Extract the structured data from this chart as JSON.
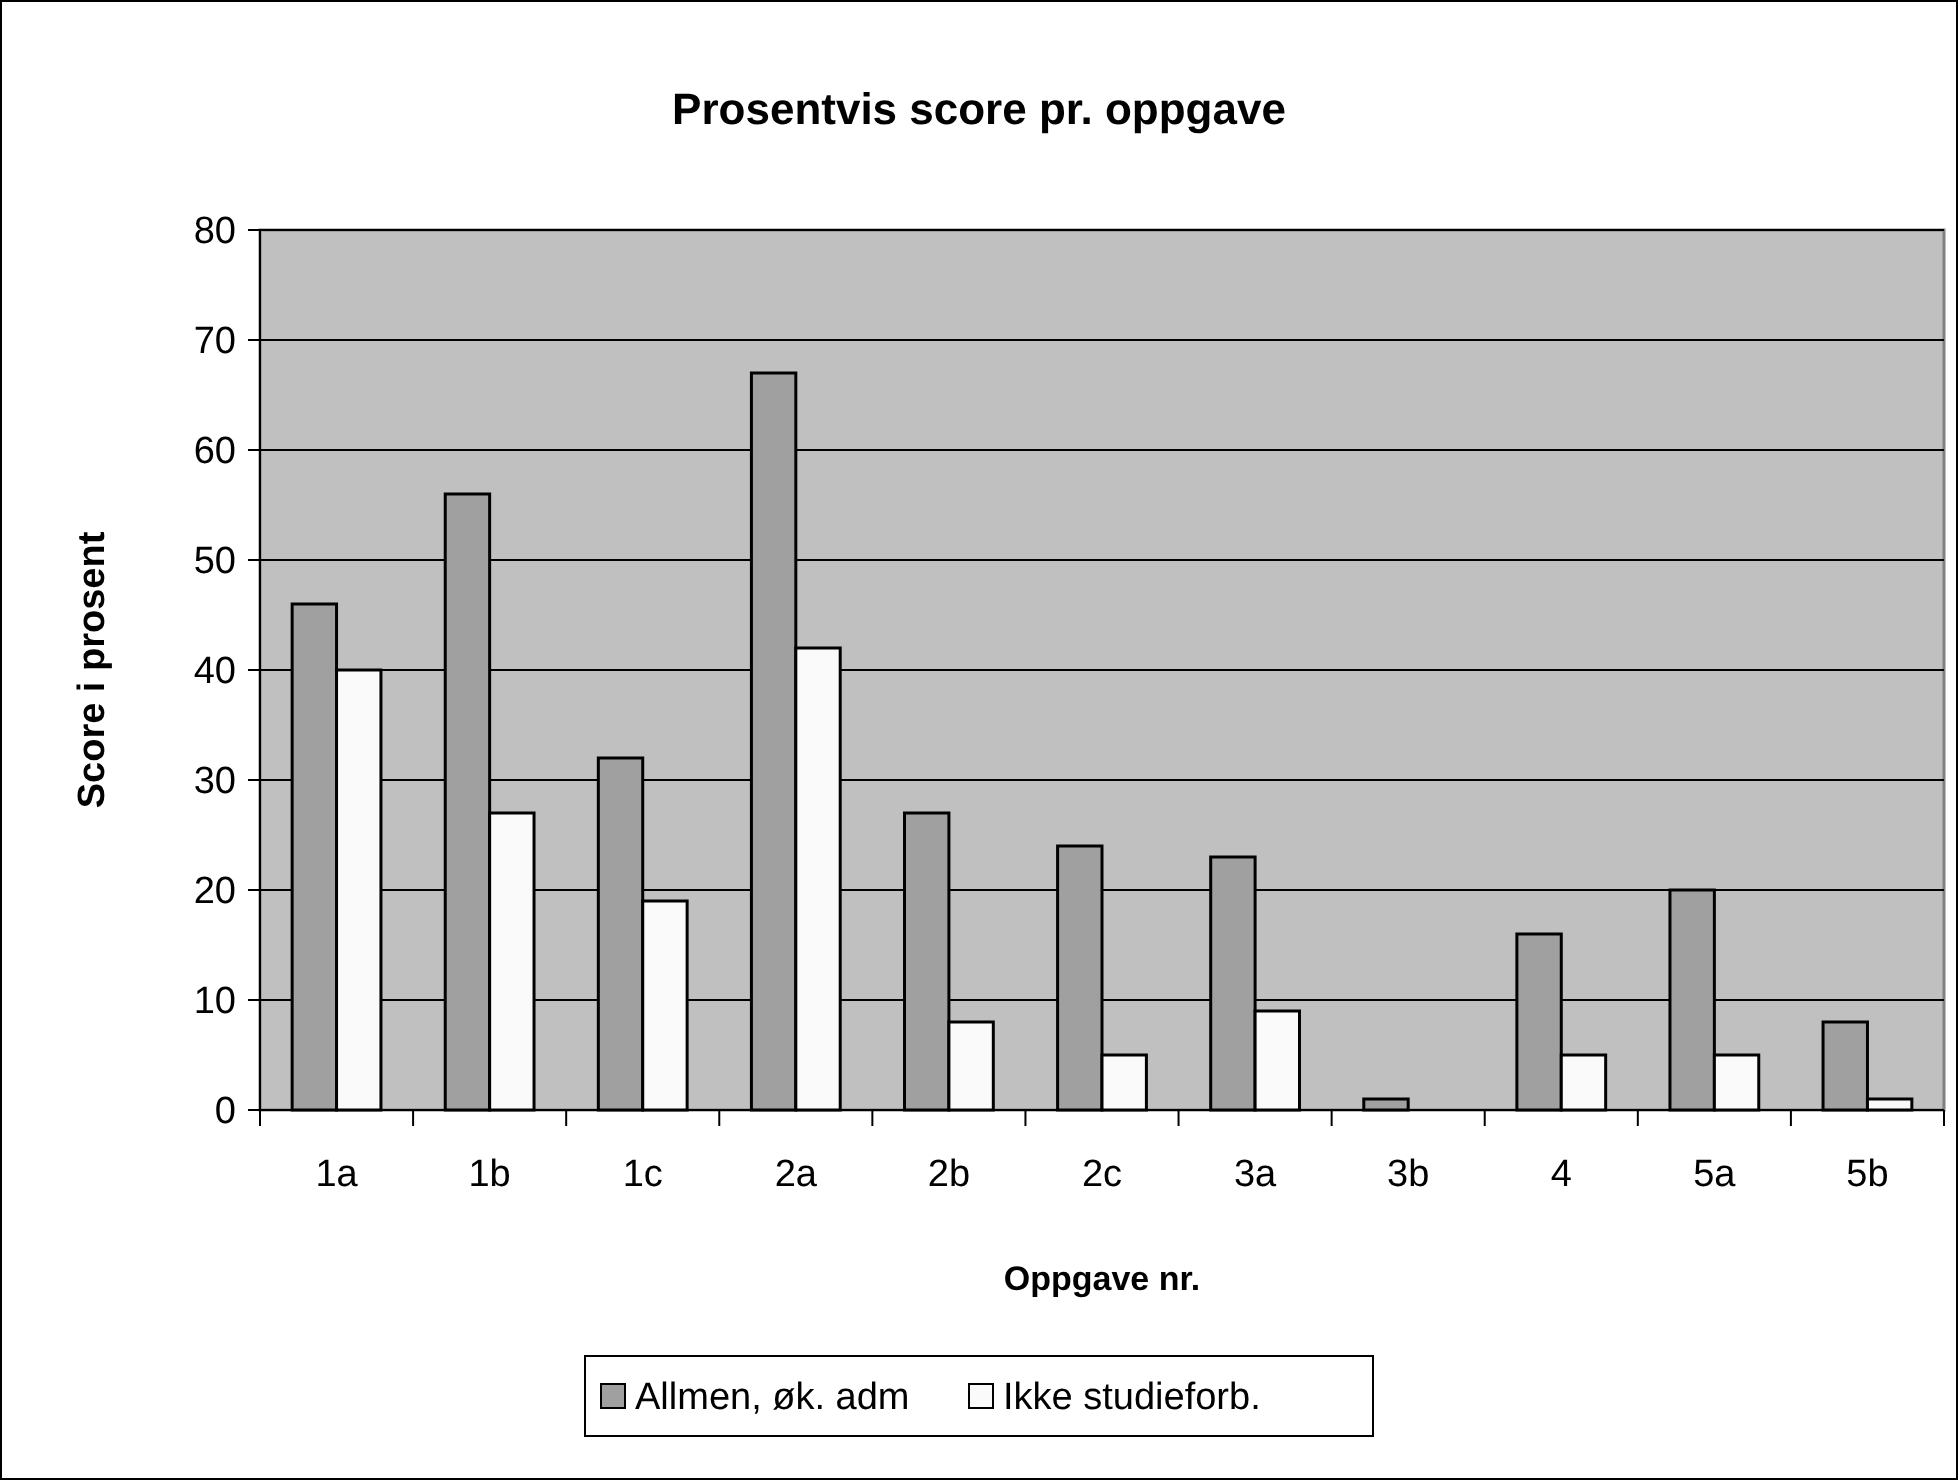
{
  "chart_data": {
    "type": "bar",
    "title": "Prosentvis score pr. oppgave",
    "xlabel": "Oppgave nr.",
    "ylabel": "Score i prosent",
    "categories": [
      "1a",
      "1b",
      "1c",
      "2a",
      "2b",
      "2c",
      "3a",
      "3b",
      "4",
      "5a",
      "5b"
    ],
    "series": [
      {
        "name": "Allmen, øk. adm",
        "color": "#a0a0a0",
        "values": [
          46,
          56,
          32,
          67,
          27,
          24,
          23,
          1,
          16,
          20,
          8
        ]
      },
      {
        "name": "Ikke studieforb.",
        "color": "#fafafa",
        "values": [
          40,
          27,
          19,
          42,
          8,
          5,
          9,
          0,
          5,
          5,
          1
        ]
      }
    ],
    "ylim": [
      0,
      80
    ],
    "yticks": [
      0,
      10,
      20,
      30,
      40,
      50,
      60,
      70,
      80
    ],
    "grid": "y",
    "legend": "bottom"
  }
}
